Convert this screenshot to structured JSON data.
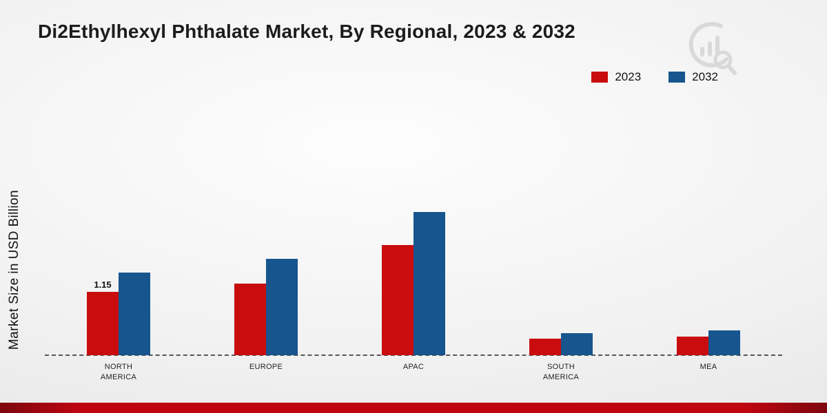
{
  "title": "Di2Ethylhexyl Phthalate Market, By Regional, 2023 & 2032",
  "colors": {
    "bar_2023": "#c90d0e",
    "bar_2032": "#16558e",
    "footer_red": "#c00510",
    "footer_red_dark": "#7d060e",
    "background_center": "#fdfdfd",
    "background_edge": "#e3e3e3",
    "baseline": "#555555",
    "title_text": "#1c1c1c"
  },
  "branding": {
    "logo_icon": "market-research-future-watermark-icon"
  },
  "chart_data": {
    "type": "bar",
    "title": "Di2Ethylhexyl Phthalate Market, By Regional, 2023 & 2032",
    "xlabel": "",
    "ylabel": "Market Size in USD Billion",
    "categories": [
      "NORTH AMERICA",
      "EUROPE",
      "APAC",
      "SOUTH AMERICA",
      "MEA"
    ],
    "series": [
      {
        "name": "2023",
        "color": "#c90d0e",
        "values": [
          1.15,
          1.3,
          2.0,
          0.3,
          0.34
        ],
        "data_labels": [
          "1.15",
          null,
          null,
          null,
          null
        ]
      },
      {
        "name": "2032",
        "color": "#16558e",
        "values": [
          1.5,
          1.75,
          2.6,
          0.4,
          0.45
        ],
        "data_labels": [
          null,
          null,
          null,
          null,
          null
        ]
      }
    ],
    "ylim": [
      0,
      3
    ],
    "grid": false,
    "legend_position": "top-right",
    "baseline_style": "dashed"
  }
}
